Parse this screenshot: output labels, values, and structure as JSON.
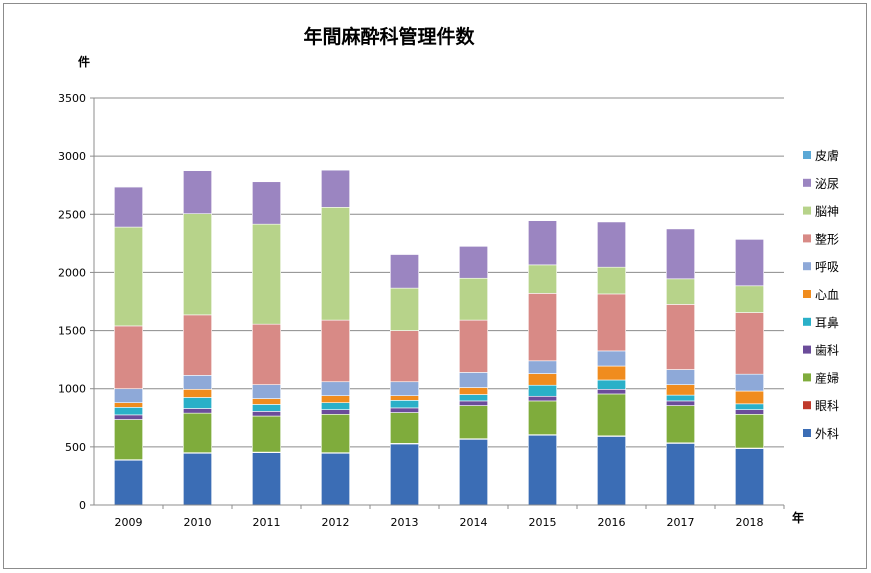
{
  "chart_data": {
    "type": "bar",
    "stacked": true,
    "title": "年間麻酔科管理件数",
    "ylabel": "件",
    "xlabel": "年",
    "ylim": [
      0,
      3500
    ],
    "yticks": [
      0,
      500,
      1000,
      1500,
      2000,
      2500,
      3000,
      3500
    ],
    "grid": true,
    "legend_position": "right",
    "categories": [
      "2009",
      "2010",
      "2011",
      "2012",
      "2013",
      "2014",
      "2015",
      "2016",
      "2017",
      "2018"
    ],
    "series": [
      {
        "name": "外科",
        "color": "#3b6db5",
        "values": [
          385,
          445,
          450,
          445,
          525,
          565,
          600,
          590,
          530,
          485
        ]
      },
      {
        "name": "眼科",
        "color": "#c0392b",
        "values": [
          5,
          5,
          5,
          5,
          5,
          5,
          5,
          5,
          5,
          5
        ]
      },
      {
        "name": "産婦",
        "color": "#7fac3c",
        "values": [
          345,
          340,
          310,
          330,
          265,
          285,
          290,
          360,
          320,
          290
        ]
      },
      {
        "name": "歯科",
        "color": "#6b4c9a",
        "values": [
          40,
          40,
          40,
          40,
          40,
          40,
          40,
          40,
          40,
          40
        ]
      },
      {
        "name": "耳鼻",
        "color": "#2ab0c8",
        "values": [
          65,
          95,
          60,
          60,
          65,
          55,
          95,
          80,
          50,
          50
        ]
      },
      {
        "name": "心血",
        "color": "#f08c1e",
        "values": [
          40,
          70,
          50,
          60,
          40,
          60,
          100,
          120,
          90,
          110
        ]
      },
      {
        "name": "呼吸",
        "color": "#8ea9d8",
        "values": [
          120,
          120,
          120,
          120,
          120,
          130,
          110,
          130,
          130,
          145
        ]
      },
      {
        "name": "整形",
        "color": "#d88a86",
        "values": [
          540,
          520,
          520,
          530,
          440,
          450,
          580,
          490,
          560,
          530
        ]
      },
      {
        "name": "脳神",
        "color": "#b7d38a",
        "values": [
          850,
          870,
          860,
          970,
          365,
          360,
          245,
          230,
          220,
          230
        ]
      },
      {
        "name": "泌尿",
        "color": "#9b85c1",
        "values": [
          345,
          370,
          365,
          320,
          290,
          275,
          380,
          390,
          430,
          400
        ]
      },
      {
        "name": "皮膚",
        "color": "#5ba8d6",
        "values": [
          5,
          5,
          5,
          5,
          5,
          5,
          5,
          5,
          5,
          5
        ]
      }
    ]
  }
}
